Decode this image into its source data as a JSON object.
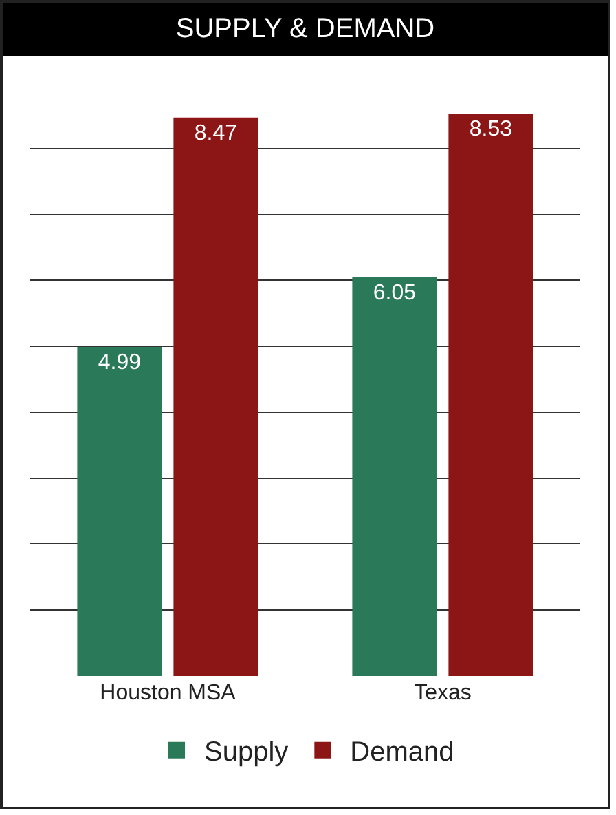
{
  "chart_data": {
    "type": "bar",
    "title": "SUPPLY & DEMAND",
    "categories": [
      "Houston MSA",
      "Texas"
    ],
    "series": [
      {
        "name": "Supply",
        "color": "#2a7a5a",
        "values": [
          4.99,
          6.05
        ]
      },
      {
        "name": "Demand",
        "color": "#8c1616",
        "values": [
          8.47,
          8.53
        ]
      }
    ],
    "data_labels": true,
    "grid": "y",
    "legend": "bottom",
    "tick_labels": "x"
  }
}
